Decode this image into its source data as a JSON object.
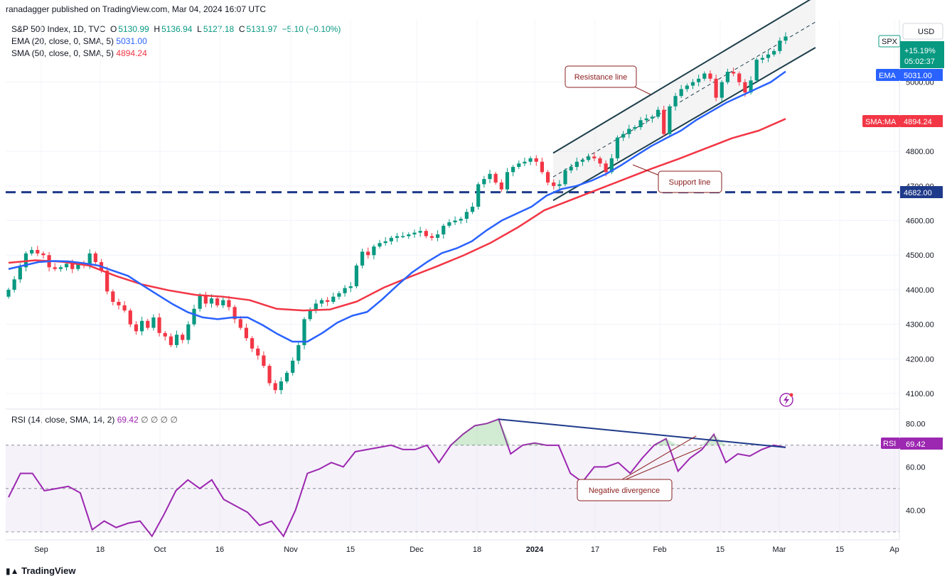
{
  "publisher": "ranadagger published on TradingView.com, Mar 04, 2024 16:07 UTC",
  "legend": {
    "symbol": "S&P 500 Index, 1D, TVC",
    "o_label": "O",
    "o": "5130.99",
    "h_label": "H",
    "h": "5136.94",
    "l_label": "L",
    "l": "5127.18",
    "c_label": "C",
    "c": "5131.97",
    "chg": "−5.10 (−0.10%)",
    "ema_label": "EMA (20, close, 0, SMA, 5)",
    "ema_val": "5031.00",
    "sma_label": "SMA (50, close, 0, SMA, 5)",
    "sma_val": "4894.24",
    "rsi_label": "RSI (14, close, SMA, 14, 2)",
    "rsi_val": "69.42",
    "rsi_extra": "∅ ∅ ∅ ∅"
  },
  "currency": "USD",
  "badges": {
    "spx": "SPX",
    "spx_pct": "+15.19%",
    "spx_time": "05:02:37",
    "ema": "EMA",
    "ema_val": "5031.00",
    "sma": "SMA:MA",
    "sma_val": "4894.24",
    "level": "4682.00",
    "rsi": "RSI",
    "rsi_val": "69.42"
  },
  "annotations": {
    "resistance": "Resistance line",
    "support": "Support line",
    "divergence": "Negative divergence"
  },
  "brand": "TradingView",
  "colors": {
    "up": "#089981",
    "down": "#f23645",
    "ema": "#2962ff",
    "sma": "#f23645",
    "rsi": "#9c27b0",
    "level": "#1e3a8a",
    "channel": "#1e3f4a"
  },
  "chart_data": {
    "type": "candlestick",
    "title": "S&P 500 Index, 1D, TVC",
    "x_ticks": [
      "Sep",
      "18",
      "Oct",
      "16",
      "Nov",
      "15",
      "Dec",
      "18",
      "2024",
      "17",
      "Feb",
      "15",
      "Mar",
      "15",
      "Ap"
    ],
    "y_ticks": [
      4100,
      4200,
      4300,
      4400,
      4500,
      4600,
      4700,
      4800,
      5000
    ],
    "y_tick_labels": [
      "4100.00",
      "4200.00",
      "4300.00",
      "4400.00",
      "4500.00",
      "4600.00",
      "4700.00",
      "4800.00",
      "5000.00"
    ],
    "ylim": [
      4055,
      5180
    ],
    "horizontal_level": 4682,
    "close_prices": [
      4400,
      4430,
      4465,
      4505,
      4515,
      4505,
      4500,
      4465,
      4460,
      4465,
      4475,
      4460,
      4475,
      4470,
      4505,
      4480,
      4455,
      4395,
      4365,
      4355,
      4340,
      4300,
      4280,
      4310,
      4290,
      4320,
      4275,
      4265,
      4240,
      4270,
      4255,
      4300,
      4345,
      4385,
      4360,
      4375,
      4355,
      4370,
      4350,
      4315,
      4290,
      4260,
      4230,
      4210,
      4180,
      4130,
      4110,
      4135,
      4160,
      4195,
      4240,
      4315,
      4340,
      4360,
      4370,
      4365,
      4380,
      4390,
      4405,
      4410,
      4470,
      4510,
      4500,
      4525,
      4535,
      4540,
      4550,
      4555,
      4555,
      4560,
      4565,
      4570,
      4555,
      4550,
      4560,
      4585,
      4595,
      4600,
      4605,
      4625,
      4640,
      4705,
      4720,
      4735,
      4710,
      4690,
      4740,
      4755,
      4765,
      4770,
      4780,
      4770,
      4740,
      4710,
      4700,
      4705,
      4745,
      4755,
      4770,
      4775,
      4785,
      4780,
      4765,
      4740,
      4780,
      4840,
      4850,
      4865,
      4870,
      4890,
      4895,
      4900,
      4920,
      4850,
      4930,
      4960,
      4980,
      4990,
      5000,
      5010,
      5025,
      5010,
      4955,
      5000,
      5030,
      5025,
      5000,
      4970,
      5005,
      5065,
      5070,
      5080,
      5090,
      5120,
      5132
    ],
    "ema20": [
      4460,
      4470,
      4480,
      4483,
      4482,
      4477,
      4470,
      4455,
      4440,
      4412,
      4385,
      4358,
      4335,
      4320,
      4315,
      4320,
      4320,
      4298,
      4272,
      4250,
      4250,
      4275,
      4305,
      4325,
      4336,
      4372,
      4412,
      4450,
      4480,
      4506,
      4520,
      4540,
      4572,
      4600,
      4620,
      4640,
      4672,
      4691,
      4700,
      4715,
      4735,
      4760,
      4788,
      4815,
      4838,
      4860,
      4890,
      4915,
      4940,
      4960,
      4980,
      5000,
      5031
    ],
    "sma50": [
      4478,
      4485,
      4481,
      4470,
      4440,
      4415,
      4398,
      4385,
      4380,
      4370,
      4345,
      4340,
      4343,
      4366,
      4406,
      4438,
      4468,
      4500,
      4536,
      4580,
      4630,
      4660,
      4690,
      4720,
      4750,
      4778,
      4808,
      4838,
      4860,
      4894
    ],
    "rsi": [
      46,
      57,
      57,
      49,
      50,
      51,
      48,
      31,
      35,
      32,
      34,
      35,
      28,
      38,
      49,
      54,
      50,
      54,
      45,
      42,
      39,
      33,
      35,
      28,
      40,
      57,
      59,
      62,
      60,
      67,
      68,
      69,
      70,
      68,
      68,
      70,
      62,
      70,
      75,
      79,
      80,
      82,
      66,
      70,
      71,
      70,
      70,
      57,
      53,
      60,
      60,
      62,
      57,
      64,
      70,
      73,
      58,
      64,
      68,
      75,
      62,
      66,
      65,
      68,
      70,
      69
    ],
    "rsi_ticks": [
      40,
      60,
      80
    ],
    "rsi_tick_labels": [
      "40.00",
      "60.00",
      "80.00"
    ],
    "rsi_bands": [
      30,
      50,
      70
    ],
    "rsi_ylim": [
      27,
      86
    ],
    "channel": {
      "upper_start": 4795,
      "upper_end": 5248,
      "lower_start": 4658,
      "lower_end": 5100,
      "mid_start": 4726,
      "mid_end": 5174
    }
  }
}
